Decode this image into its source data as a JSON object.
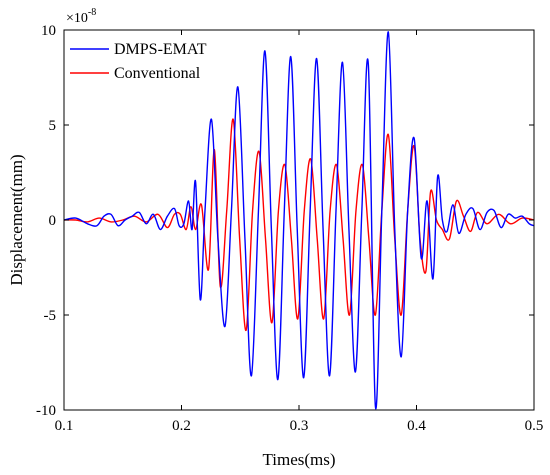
{
  "chart_data": {
    "type": "line",
    "title": "",
    "xlabel": "Times(ms)",
    "ylabel": "Displacement(mm)",
    "xlim": [
      0.1,
      0.5
    ],
    "ylim": [
      -10,
      10
    ],
    "y_multiplier": {
      "base": "×10",
      "exponent": "-8"
    },
    "xticks": [
      0.1,
      0.2,
      0.3,
      0.4,
      0.5
    ],
    "xtick_labels": [
      "0.1",
      "0.2",
      "0.3",
      "0.4",
      "0.5"
    ],
    "yticks": [
      -10,
      -5,
      0,
      5,
      10
    ],
    "ytick_labels": [
      "-10",
      "-5",
      "0",
      "5",
      "10"
    ],
    "grid": false,
    "legend_position": "top-left",
    "series": [
      {
        "name": "DMPS-EMAT",
        "color": "#0000ff",
        "x": [
          0.1,
          0.11,
          0.12,
          0.128,
          0.134,
          0.14,
          0.146,
          0.152,
          0.158,
          0.164,
          0.17,
          0.176,
          0.182,
          0.188,
          0.194,
          0.198,
          0.202,
          0.206,
          0.209,
          0.212,
          0.216,
          0.22,
          0.2255,
          0.231,
          0.237,
          0.2425,
          0.248,
          0.254,
          0.2595,
          0.2655,
          0.271,
          0.2765,
          0.282,
          0.2875,
          0.293,
          0.2985,
          0.304,
          0.3095,
          0.315,
          0.3205,
          0.326,
          0.3315,
          0.337,
          0.3425,
          0.348,
          0.3535,
          0.359,
          0.365,
          0.3705,
          0.376,
          0.3815,
          0.387,
          0.3925,
          0.398,
          0.404,
          0.409,
          0.414,
          0.418,
          0.422,
          0.426,
          0.431,
          0.436,
          0.442,
          0.448,
          0.454,
          0.46,
          0.466,
          0.472,
          0.478,
          0.484,
          0.49,
          0.496,
          0.5
        ],
        "y": [
          0.0,
          0.1,
          -0.2,
          -0.3,
          0.2,
          0.3,
          -0.3,
          0.0,
          0.2,
          0.4,
          -0.2,
          0.3,
          -0.5,
          0.2,
          0.6,
          -0.3,
          -0.2,
          1.0,
          -0.5,
          2.0,
          -4.2,
          0.5,
          5.3,
          -1.0,
          -5.6,
          0.5,
          7.0,
          -1.0,
          -8.2,
          0.5,
          8.9,
          -0.5,
          -8.4,
          0.5,
          8.6,
          -0.5,
          -8.3,
          0.5,
          8.5,
          -0.5,
          -8.2,
          0.5,
          8.3,
          -0.5,
          -8.0,
          0.5,
          8.2,
          -9.8,
          0.5,
          9.9,
          -0.5,
          -7.2,
          0.5,
          4.3,
          -2.0,
          1.0,
          -3.1,
          2.3,
          0.0,
          -0.6,
          0.8,
          -0.7,
          0.3,
          0.6,
          -0.5,
          0.4,
          0.5,
          -0.4,
          0.3,
          0.1,
          0.2,
          -0.2,
          -0.3
        ]
      },
      {
        "name": "Conventional",
        "color": "#ff0000",
        "x": [
          0.1,
          0.11,
          0.12,
          0.13,
          0.14,
          0.15,
          0.16,
          0.17,
          0.18,
          0.188,
          0.194,
          0.199,
          0.204,
          0.208,
          0.212,
          0.217,
          0.223,
          0.228,
          0.233,
          0.2385,
          0.244,
          0.2495,
          0.255,
          0.2605,
          0.266,
          0.2715,
          0.277,
          0.2825,
          0.288,
          0.2935,
          0.299,
          0.3045,
          0.31,
          0.3155,
          0.321,
          0.3265,
          0.332,
          0.3375,
          0.343,
          0.3485,
          0.354,
          0.3595,
          0.365,
          0.3705,
          0.376,
          0.3815,
          0.387,
          0.3925,
          0.398,
          0.403,
          0.408,
          0.412,
          0.417,
          0.422,
          0.428,
          0.434,
          0.44,
          0.446,
          0.452,
          0.46,
          0.47,
          0.48,
          0.49,
          0.5
        ],
        "y": [
          0.0,
          0.0,
          -0.1,
          0.1,
          -0.1,
          0.0,
          0.2,
          -0.1,
          0.3,
          -0.4,
          0.3,
          0.3,
          -0.5,
          0.7,
          -0.5,
          0.8,
          -2.6,
          3.7,
          -3.5,
          0.5,
          5.3,
          -1.0,
          -5.8,
          0.5,
          3.6,
          -1.0,
          -5.4,
          0.5,
          2.9,
          -1.0,
          -5.2,
          0.5,
          3.2,
          -1.0,
          -5.2,
          0.5,
          2.9,
          -1.0,
          -5.0,
          0.5,
          2.9,
          -1.0,
          -5.0,
          0.5,
          4.5,
          -1.0,
          -5.0,
          0.5,
          3.9,
          -1.0,
          -2.7,
          1.5,
          0.0,
          -0.5,
          -1.0,
          1.0,
          0.2,
          -0.6,
          0.4,
          -0.2,
          0.3,
          -0.2,
          0.1,
          0.0
        ]
      }
    ]
  }
}
